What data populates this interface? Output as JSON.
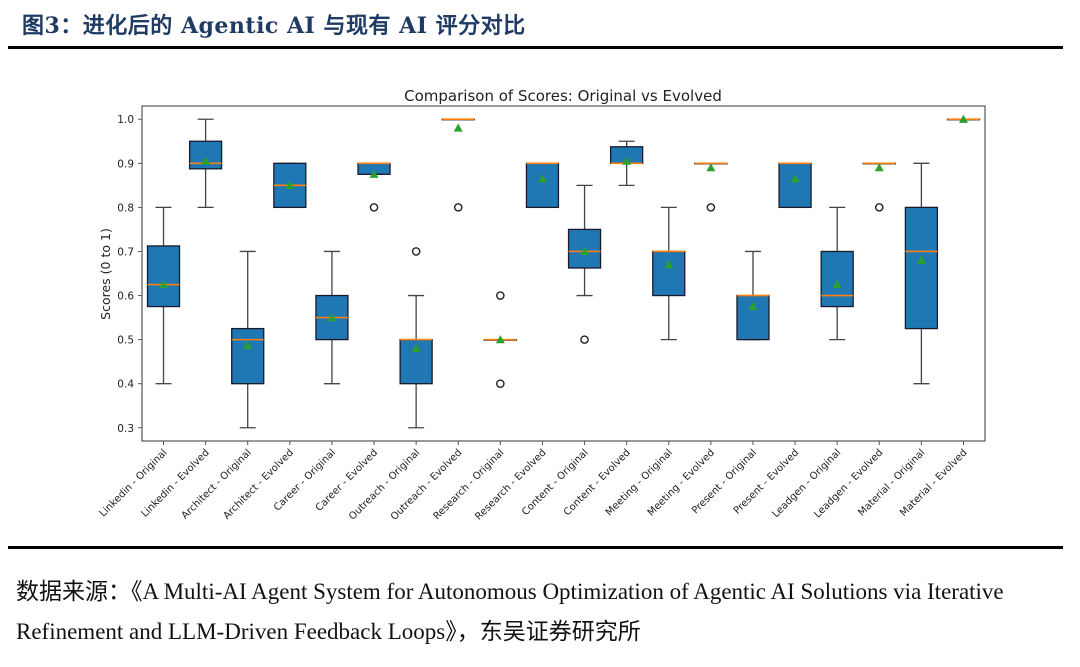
{
  "figure": {
    "title": "图3：进化后的 Agentic AI 与现有 AI 评分对比",
    "source_prefix": "数据来源：",
    "source_text": "《A Multi-AI Agent System for Autonomous Optimization of Agentic AI Solutions via Iterative Refinement and LLM-Driven Feedback Loops》，东吴证券研究所"
  },
  "colors": {
    "box_fill": "#1f77b4",
    "box_edge": "#1a1a2e",
    "median": "#ff7f0e",
    "mean_marker": "#2ca02c",
    "whisker": "#444444"
  },
  "chart_data": {
    "type": "boxplot",
    "title": "Comparison of Scores: Original vs Evolved",
    "xlabel": "",
    "ylabel": "Scores (0 to 1)",
    "ylim": [
      0.27,
      1.03
    ],
    "yticks": [
      "0.3",
      "0.4",
      "0.5",
      "0.6",
      "0.7",
      "0.8",
      "0.9",
      "1.0"
    ],
    "grid": false,
    "categories": [
      "Linkedin - Original",
      "Linkedin - Evolved",
      "Architect - Original",
      "Architect - Evolved",
      "Career - Original",
      "Career - Evolved",
      "Outreach - Original",
      "Outreach - Evolved",
      "Research - Original",
      "Research - Evolved",
      "Content - Original",
      "Content - Evolved",
      "Meeting - Original",
      "Meeting - Evolved",
      "Present - Original",
      "Present - Evolved",
      "Leadgen - Original",
      "Leadgen - Evolved",
      "Material - Original",
      "Material - Evolved"
    ],
    "boxes": [
      {
        "whislo": 0.4,
        "q1": 0.575,
        "med": 0.625,
        "q3": 0.7125,
        "whishi": 0.8,
        "mean": 0.625,
        "fliers": []
      },
      {
        "whislo": 0.8,
        "q1": 0.8875,
        "med": 0.9,
        "q3": 0.95,
        "whishi": 1.0,
        "mean": 0.905,
        "fliers": []
      },
      {
        "whislo": 0.3,
        "q1": 0.4,
        "med": 0.5,
        "q3": 0.525,
        "whishi": 0.7,
        "mean": 0.487,
        "fliers": []
      },
      {
        "whislo": 0.8,
        "q1": 0.8,
        "med": 0.85,
        "q3": 0.9,
        "whishi": 0.9,
        "mean": 0.85,
        "fliers": []
      },
      {
        "whislo": 0.4,
        "q1": 0.5,
        "med": 0.55,
        "q3": 0.6,
        "whishi": 0.7,
        "mean": 0.55,
        "fliers": []
      },
      {
        "whislo": 0.875,
        "q1": 0.875,
        "med": 0.9,
        "q3": 0.9,
        "whishi": 0.9,
        "mean": 0.875,
        "fliers": [
          0.8
        ]
      },
      {
        "whislo": 0.3,
        "q1": 0.4,
        "med": 0.5,
        "q3": 0.5,
        "whishi": 0.6,
        "mean": 0.48,
        "fliers": [
          0.7
        ]
      },
      {
        "whislo": 1.0,
        "q1": 1.0,
        "med": 1.0,
        "q3": 1.0,
        "whishi": 1.0,
        "mean": 0.98,
        "fliers": [
          0.8
        ]
      },
      {
        "whislo": 0.5,
        "q1": 0.5,
        "med": 0.5,
        "q3": 0.5,
        "whishi": 0.5,
        "mean": 0.5,
        "fliers": [
          0.6,
          0.4
        ]
      },
      {
        "whislo": 0.8,
        "q1": 0.8,
        "med": 0.9,
        "q3": 0.9,
        "whishi": 0.9,
        "mean": 0.865,
        "fliers": []
      },
      {
        "whislo": 0.6,
        "q1": 0.6625,
        "med": 0.7,
        "q3": 0.75,
        "whishi": 0.85,
        "mean": 0.7,
        "fliers": [
          0.5
        ]
      },
      {
        "whislo": 0.85,
        "q1": 0.9,
        "med": 0.9,
        "q3": 0.9375,
        "whishi": 0.95,
        "mean": 0.905,
        "fliers": []
      },
      {
        "whislo": 0.5,
        "q1": 0.6,
        "med": 0.7,
        "q3": 0.7,
        "whishi": 0.8,
        "mean": 0.67,
        "fliers": []
      },
      {
        "whislo": 0.9,
        "q1": 0.9,
        "med": 0.9,
        "q3": 0.9,
        "whishi": 0.9,
        "mean": 0.89,
        "fliers": [
          0.8
        ]
      },
      {
        "whislo": 0.5,
        "q1": 0.5,
        "med": 0.6,
        "q3": 0.6,
        "whishi": 0.7,
        "mean": 0.575,
        "fliers": []
      },
      {
        "whislo": 0.8,
        "q1": 0.8,
        "med": 0.9,
        "q3": 0.9,
        "whishi": 0.9,
        "mean": 0.865,
        "fliers": []
      },
      {
        "whislo": 0.5,
        "q1": 0.575,
        "med": 0.6,
        "q3": 0.7,
        "whishi": 0.8,
        "mean": 0.625,
        "fliers": []
      },
      {
        "whislo": 0.9,
        "q1": 0.9,
        "med": 0.9,
        "q3": 0.9,
        "whishi": 0.9,
        "mean": 0.89,
        "fliers": [
          0.8
        ]
      },
      {
        "whislo": 0.4,
        "q1": 0.525,
        "med": 0.7,
        "q3": 0.8,
        "whishi": 0.9,
        "mean": 0.68,
        "fliers": []
      },
      {
        "whislo": 1.0,
        "q1": 1.0,
        "med": 1.0,
        "q3": 1.0,
        "whishi": 1.0,
        "mean": 1.0,
        "fliers": []
      }
    ]
  }
}
